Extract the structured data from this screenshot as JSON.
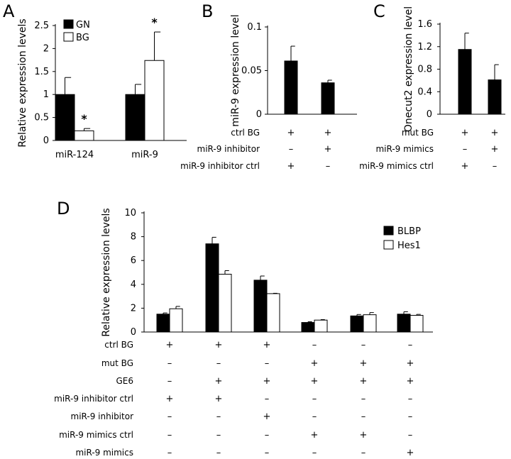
{
  "chart_data": [
    {
      "panel": "A",
      "type": "bar",
      "ylabel": "Relative expression levels",
      "ylim": [
        0,
        2.5
      ],
      "yticks": [
        "0",
        "0.5",
        "1",
        "1.5",
        "2",
        "2.5"
      ],
      "categories": [
        "miR-124",
        "miR-9"
      ],
      "series": [
        {
          "name": "GN",
          "color": "#000000",
          "values": [
            1.0,
            1.0
          ],
          "errors": [
            0.37,
            0.22
          ]
        },
        {
          "name": "BG",
          "color": "#ffffff",
          "values": [
            0.21,
            1.74
          ],
          "errors": [
            0.05,
            0.62
          ]
        }
      ],
      "significance": [
        {
          "category": 0,
          "series": 1,
          "text": "*"
        },
        {
          "category": 1,
          "series": 1,
          "text": "*"
        }
      ],
      "legend": "top-left"
    },
    {
      "panel": "B",
      "type": "bar",
      "ylabel": "miR-9 expression level",
      "ylim": [
        0,
        0.1
      ],
      "yticks": [
        "0",
        "0.05",
        "0.1"
      ],
      "series": [
        {
          "color": "#000000",
          "values": [
            0.061,
            0.036
          ],
          "errors": [
            0.017,
            0.003
          ]
        }
      ],
      "conditions": [
        {
          "label": "ctrl BG",
          "values": [
            "+",
            "+"
          ]
        },
        {
          "label": "miR-9 inhibitor",
          "values": [
            "–",
            "+"
          ]
        },
        {
          "label": "miR-9 inhibitor ctrl",
          "values": [
            "+",
            "–"
          ]
        }
      ]
    },
    {
      "panel": "C",
      "type": "bar",
      "ylabel": "Onecut2 expression level",
      "ylim": [
        0,
        1.6
      ],
      "yticks": [
        "0",
        "0.4",
        "0.8",
        "1.2",
        "1.6"
      ],
      "series": [
        {
          "color": "#000000",
          "values": [
            1.15,
            0.61
          ],
          "errors": [
            0.29,
            0.27
          ]
        }
      ],
      "conditions": [
        {
          "label": "mut BG",
          "values": [
            "+",
            "+"
          ]
        },
        {
          "label": "miR-9 mimics",
          "values": [
            "–",
            "+"
          ]
        },
        {
          "label": "miR-9 mimics ctrl",
          "values": [
            "+",
            "–"
          ]
        }
      ]
    },
    {
      "panel": "D",
      "type": "bar",
      "ylabel": "Relative expression levels",
      "ylim": [
        0,
        10
      ],
      "yticks": [
        "0",
        "2",
        "4",
        "6",
        "8",
        "10"
      ],
      "series": [
        {
          "name": "BLBP",
          "color": "#000000",
          "values": [
            1.5,
            7.4,
            4.35,
            0.8,
            1.35,
            1.5
          ],
          "errors": [
            0.1,
            0.55,
            0.35,
            0.06,
            0.12,
            0.2
          ]
        },
        {
          "name": "Hes1",
          "color": "#ffffff",
          "values": [
            1.95,
            4.85,
            3.22,
            1.0,
            1.45,
            1.4
          ],
          "errors": [
            0.2,
            0.3,
            0.03,
            0.04,
            0.18,
            0.08
          ]
        }
      ],
      "legend": "top-right",
      "conditions": [
        {
          "label": "ctrl BG",
          "values": [
            "+",
            "+",
            "+",
            "–",
            "–",
            "–"
          ]
        },
        {
          "label": "mut BG",
          "values": [
            "–",
            "–",
            "–",
            "+",
            "+",
            "+"
          ]
        },
        {
          "label": "GE6",
          "values": [
            "–",
            "+",
            "+",
            "+",
            "+",
            "+"
          ]
        },
        {
          "label": "miR-9 inhibitor ctrl",
          "values": [
            "+",
            "+",
            "–",
            "–",
            "–",
            "–"
          ]
        },
        {
          "label": "miR-9 inhibitor",
          "values": [
            "–",
            "–",
            "+",
            "–",
            "–",
            "–"
          ]
        },
        {
          "label": "miR-9 mimics ctrl",
          "values": [
            "–",
            "–",
            "–",
            "+",
            "+",
            "–"
          ]
        },
        {
          "label": "miR-9 mimics",
          "values": [
            "–",
            "–",
            "–",
            "–",
            "–",
            "+"
          ]
        }
      ]
    }
  ]
}
